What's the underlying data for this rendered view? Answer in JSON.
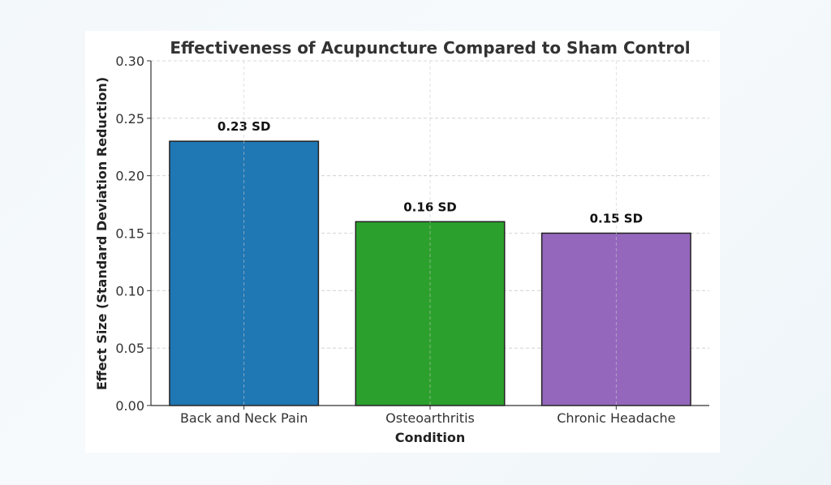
{
  "chart_data": {
    "type": "bar",
    "title": "Effectiveness of Acupuncture Compared to Sham Control",
    "xlabel": "Condition",
    "ylabel": "Effect Size (Standard Deviation Reduction)",
    "categories": [
      "Back and Neck Pain",
      "Osteoarthritis",
      "Chronic Headache"
    ],
    "values": [
      0.23,
      0.16,
      0.15
    ],
    "data_labels": [
      "0.23 SD",
      "0.16 SD",
      "0.15 SD"
    ],
    "colors": [
      "#1f77b4",
      "#2ca02c",
      "#9467bd"
    ],
    "ylim": [
      0,
      0.3
    ],
    "yticks": [
      "0.00",
      "0.05",
      "0.10",
      "0.15",
      "0.20",
      "0.25",
      "0.30"
    ],
    "grid": true
  }
}
